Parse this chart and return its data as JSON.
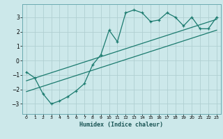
{
  "title": "",
  "xlabel": "Humidex (Indice chaleur)",
  "ylabel": "",
  "background_color": "#cce8ea",
  "grid_color": "#b0cfd2",
  "line_color": "#1a7a6e",
  "xlim": [
    -0.5,
    23.5
  ],
  "ylim": [
    -3.7,
    3.9
  ],
  "yticks": [
    -3,
    -2,
    -1,
    0,
    1,
    2,
    3
  ],
  "xticks": [
    0,
    1,
    2,
    3,
    4,
    5,
    6,
    7,
    8,
    9,
    10,
    11,
    12,
    13,
    14,
    15,
    16,
    17,
    18,
    19,
    20,
    21,
    22,
    23
  ],
  "zigzag_x": [
    0,
    1,
    2,
    3,
    4,
    5,
    6,
    7,
    8,
    9,
    10,
    11,
    12,
    13,
    14,
    15,
    16,
    17,
    18,
    19,
    20,
    21,
    22,
    23
  ],
  "zigzag_y": [
    -0.8,
    -1.2,
    -2.3,
    -3.0,
    -2.8,
    -2.5,
    -2.1,
    -1.6,
    -0.3,
    0.4,
    2.1,
    1.3,
    3.3,
    3.5,
    3.3,
    2.7,
    2.8,
    3.3,
    3.0,
    2.4,
    3.0,
    2.2,
    2.2,
    3.0
  ],
  "line1_x": [
    0,
    23
  ],
  "line1_y": [
    -1.4,
    2.85
  ],
  "line2_x": [
    0,
    23
  ],
  "line2_y": [
    -2.15,
    2.1
  ]
}
